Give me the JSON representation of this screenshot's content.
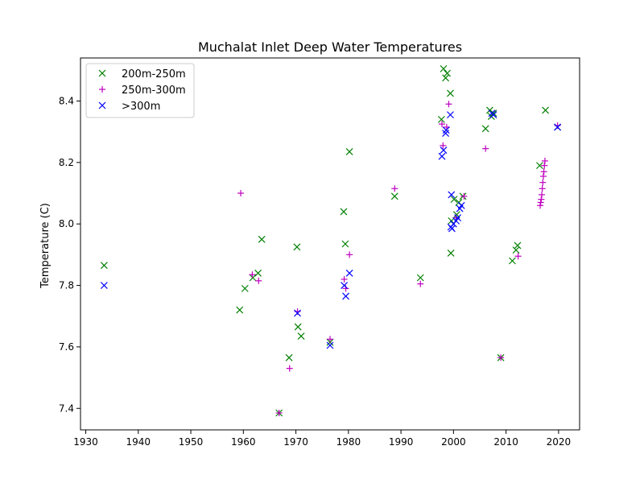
{
  "chart_data": {
    "type": "scatter",
    "title": "Muchalat Inlet Deep Water Temperatures",
    "xlabel": "",
    "ylabel": "Temperature (C)",
    "xlim": [
      1929,
      2024
    ],
    "ylim": [
      7.33,
      8.54
    ],
    "xticks": [
      1930,
      1940,
      1950,
      1960,
      1970,
      1980,
      1990,
      2000,
      2010,
      2020
    ],
    "yticks": [
      7.4,
      7.6,
      7.8,
      8.0,
      8.2,
      8.4
    ],
    "grid": false,
    "legend_position": "top-left",
    "series": [
      {
        "name": "200m-250m",
        "marker": "x",
        "color": "#008000",
        "points": [
          [
            1933.5,
            7.865
          ],
          [
            1959.3,
            7.72
          ],
          [
            1960.3,
            7.79
          ],
          [
            1961.8,
            7.825
          ],
          [
            1962.8,
            7.84
          ],
          [
            1963.5,
            7.95
          ],
          [
            1966.8,
            7.385
          ],
          [
            1968.7,
            7.565
          ],
          [
            1970.2,
            7.925
          ],
          [
            1970.4,
            7.665
          ],
          [
            1971.0,
            7.635
          ],
          [
            1976.5,
            7.615
          ],
          [
            1979.1,
            8.04
          ],
          [
            1979.4,
            7.935
          ],
          [
            1980.2,
            8.235
          ],
          [
            1988.8,
            8.09
          ],
          [
            1993.7,
            7.825
          ],
          [
            1997.7,
            8.34
          ],
          [
            1998.1,
            8.505
          ],
          [
            1998.5,
            8.475
          ],
          [
            1998.8,
            8.49
          ],
          [
            1999.4,
            8.425
          ],
          [
            1999.5,
            7.905
          ],
          [
            1999.6,
            8.01
          ],
          [
            2000.1,
            8.08
          ],
          [
            2000.6,
            8.03
          ],
          [
            2001.0,
            8.07
          ],
          [
            2001.8,
            8.09
          ],
          [
            2006.1,
            8.31
          ],
          [
            2006.9,
            8.37
          ],
          [
            2007.2,
            8.35
          ],
          [
            2007.6,
            8.36
          ],
          [
            2009.0,
            7.565
          ],
          [
            2011.2,
            7.88
          ],
          [
            2011.9,
            7.915
          ],
          [
            2012.2,
            7.93
          ],
          [
            2016.4,
            8.19
          ],
          [
            2017.5,
            8.37
          ],
          [
            2019.8,
            8.315
          ]
        ]
      },
      {
        "name": "250m-300m",
        "marker": "+",
        "color": "#bf00bf",
        "points": [
          [
            1959.5,
            8.1
          ],
          [
            1961.7,
            7.835
          ],
          [
            1962.9,
            7.815
          ],
          [
            1966.8,
            7.385
          ],
          [
            1968.8,
            7.53
          ],
          [
            1970.3,
            7.715
          ],
          [
            1976.5,
            7.625
          ],
          [
            1979.2,
            7.82
          ],
          [
            1979.5,
            7.79
          ],
          [
            1980.2,
            7.9
          ],
          [
            1988.8,
            8.115
          ],
          [
            1993.7,
            7.805
          ],
          [
            1997.8,
            8.325
          ],
          [
            1998.0,
            8.255
          ],
          [
            1998.7,
            8.315
          ],
          [
            1999.1,
            8.39
          ],
          [
            2000.5,
            8.02
          ],
          [
            2002.0,
            8.09
          ],
          [
            2006.1,
            8.245
          ],
          [
            2009.0,
            7.565
          ],
          [
            2012.3,
            7.895
          ],
          [
            2016.5,
            8.06
          ],
          [
            2016.6,
            8.07
          ],
          [
            2016.7,
            8.08
          ],
          [
            2016.8,
            8.095
          ],
          [
            2016.9,
            8.115
          ],
          [
            2017.0,
            8.135
          ],
          [
            2017.1,
            8.155
          ],
          [
            2017.2,
            8.17
          ],
          [
            2017.3,
            8.19
          ],
          [
            2017.4,
            8.205
          ],
          [
            2019.8,
            8.32
          ]
        ]
      },
      {
        "name": ">300m",
        "marker": "x",
        "color": "#0000ff",
        "points": [
          [
            1933.5,
            7.8
          ],
          [
            1970.3,
            7.71
          ],
          [
            1976.5,
            7.605
          ],
          [
            1979.2,
            7.8
          ],
          [
            1979.5,
            7.765
          ],
          [
            1980.2,
            7.84
          ],
          [
            1997.8,
            8.22
          ],
          [
            1998.1,
            8.24
          ],
          [
            1998.5,
            8.295
          ],
          [
            1998.6,
            8.305
          ],
          [
            1999.4,
            8.355
          ],
          [
            1999.5,
            7.99
          ],
          [
            1999.6,
            8.095
          ],
          [
            1999.7,
            7.985
          ],
          [
            2000.0,
            8.0
          ],
          [
            2000.5,
            8.01
          ],
          [
            2000.8,
            8.02
          ],
          [
            2001.2,
            8.05
          ],
          [
            2001.5,
            8.06
          ],
          [
            2007.3,
            8.36
          ],
          [
            2007.6,
            8.355
          ],
          [
            2019.8,
            8.315
          ]
        ]
      }
    ]
  }
}
